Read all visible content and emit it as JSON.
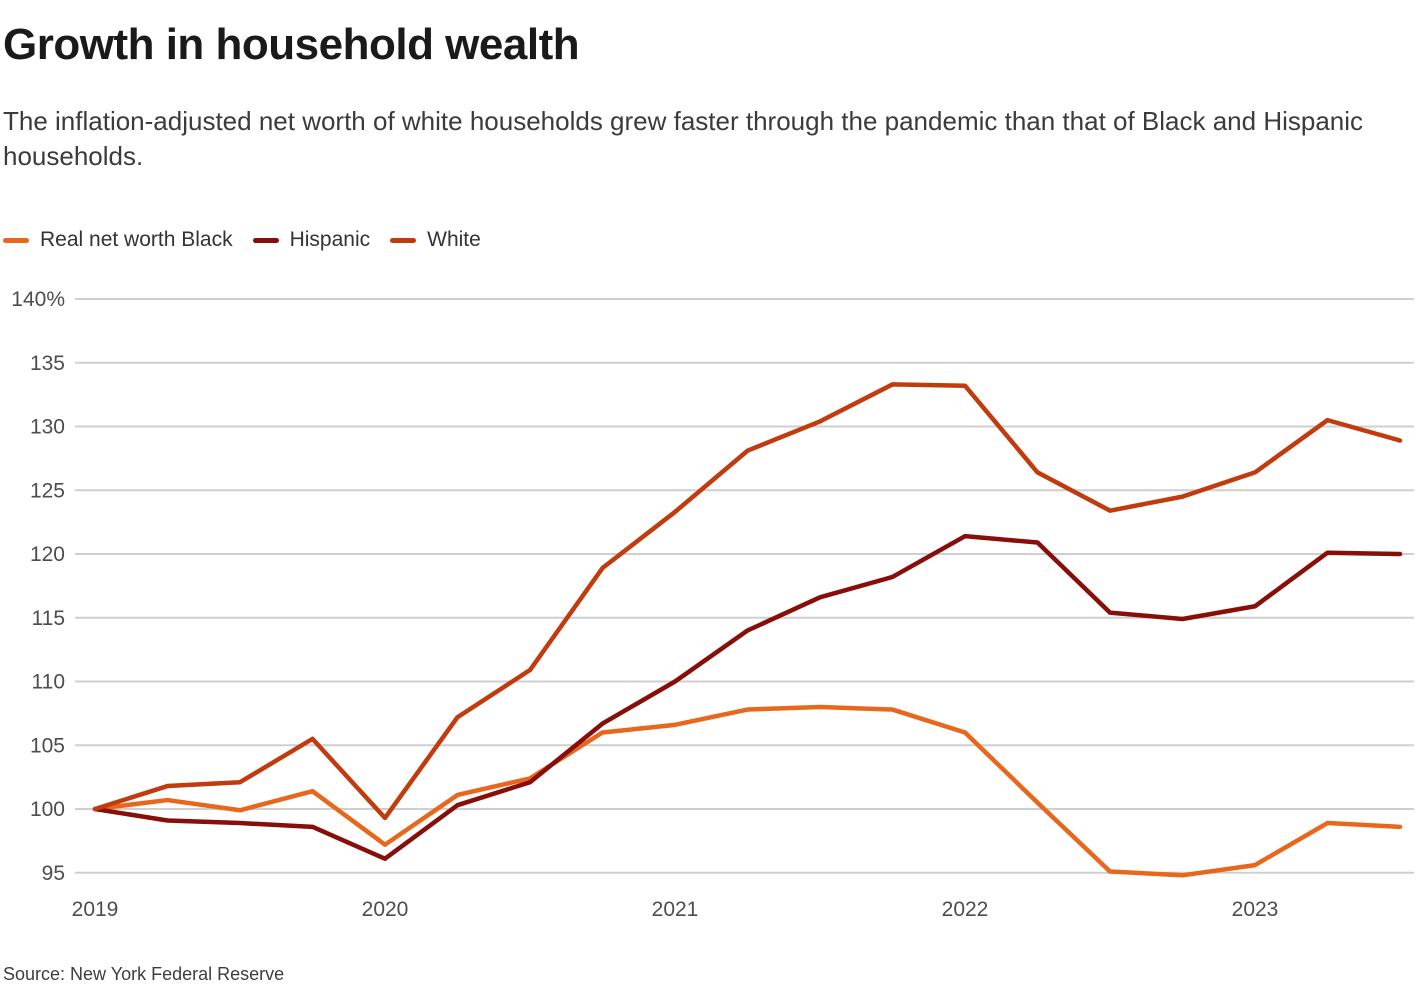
{
  "header": {
    "title": "Growth in household wealth",
    "subtitle": "The inflation-adjusted net worth of white households grew faster through the pandemic than that of Black and Hispanic households."
  },
  "source_note": "Source: New York Federal Reserve",
  "colors": {
    "grid": "#cfcfcf",
    "title_text": "#1a1a1a",
    "body_text": "#3b3b3b",
    "axis_text": "#4d4d4d"
  },
  "axes": {
    "y_top_tick_label": "140%",
    "y_tick_labels": [
      "140%",
      "135",
      "130",
      "125",
      "120",
      "115",
      "110",
      "105",
      "100",
      "95"
    ],
    "x_tick_labels": [
      "2019",
      "2020",
      "2021",
      "2022",
      "2023"
    ]
  },
  "chart_data": {
    "type": "line",
    "title": "Growth in household wealth",
    "x_unit": "quarter",
    "categories": [
      "2019 Q1",
      "2019 Q2",
      "2019 Q3",
      "2019 Q4",
      "2020 Q1",
      "2020 Q2",
      "2020 Q3",
      "2020 Q4",
      "2021 Q1",
      "2021 Q2",
      "2021 Q3",
      "2021 Q4",
      "2022 Q1",
      "2022 Q2",
      "2022 Q3",
      "2022 Q4",
      "2023 Q1",
      "2023 Q2",
      "2023 Q3"
    ],
    "ylim": [
      95,
      140
    ],
    "ytick_step": 5,
    "ytick_top_label": "140%",
    "grid": true,
    "legend_position": "top-left",
    "xticks": [
      {
        "label": "2019",
        "index": 0
      },
      {
        "label": "2020",
        "index": 4
      },
      {
        "label": "2021",
        "index": 8
      },
      {
        "label": "2022",
        "index": 12
      },
      {
        "label": "2023",
        "index": 16
      }
    ],
    "series": [
      {
        "name": "Real net worth Black",
        "color": "#E8671C",
        "values": [
          100,
          100.7,
          99.9,
          101.4,
          97.2,
          101.1,
          102.4,
          106.0,
          106.6,
          107.8,
          108.0,
          107.8,
          106.0,
          100.5,
          95.1,
          94.8,
          95.6,
          98.9,
          98.6
        ]
      },
      {
        "name": "Hispanic",
        "color": "#870E09",
        "values": [
          100,
          99.1,
          98.9,
          98.6,
          96.1,
          100.3,
          102.1,
          106.7,
          110.0,
          114.0,
          116.6,
          118.2,
          121.4,
          120.9,
          115.4,
          114.9,
          115.9,
          120.1,
          120.0
        ]
      },
      {
        "name": "White",
        "color": "#C23B0E",
        "values": [
          100,
          101.8,
          102.1,
          105.5,
          99.3,
          107.2,
          110.9,
          118.9,
          123.3,
          128.1,
          130.4,
          133.3,
          133.2,
          126.4,
          123.4,
          124.5,
          126.4,
          130.5,
          128.9
        ]
      }
    ]
  }
}
